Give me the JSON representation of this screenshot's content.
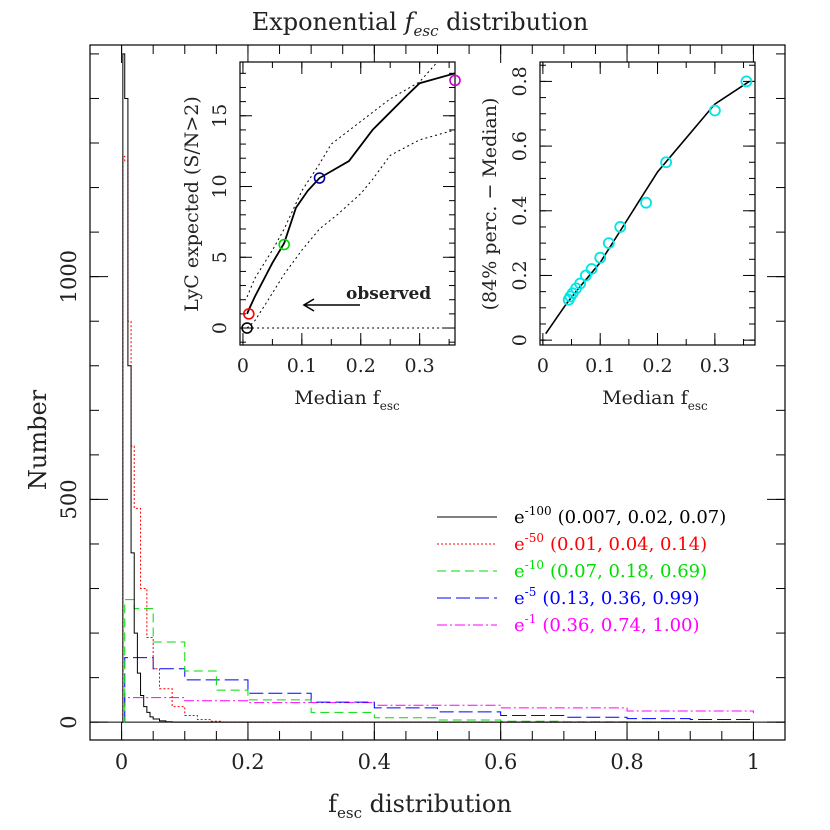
{
  "main_title": {
    "prefix": "Exponential ",
    "var": "f",
    "sub": "esc",
    "suffix": " distribution"
  },
  "main_xlabel": {
    "var": "f",
    "sub": "esc",
    "suffix": " distribution"
  },
  "main_ylabel": "Number",
  "inset1": {
    "ylabel": "LyC expected (S/N>2)",
    "xlabel_prefix": "Median f",
    "xlabel_sub": "esc",
    "annotation": "observed"
  },
  "inset2": {
    "ylabel": "(84% perc. − Median)",
    "xlabel_prefix": "Median f",
    "xlabel_sub": "esc"
  },
  "legend": [
    {
      "base": "e",
      "exp": "-100",
      "params": "(0.007, 0.02, 0.07)",
      "color": "#000000"
    },
    {
      "base": "e",
      "exp": "-50",
      "params": "(0.01, 0.04, 0.14)",
      "color": "#ff0000"
    },
    {
      "base": "e",
      "exp": "-10",
      "params": "(0.07, 0.18, 0.69)",
      "color": "#00dd00"
    },
    {
      "base": "e",
      "exp": "-5",
      "params": "(0.13, 0.36, 0.99)",
      "color": "#0000ff"
    },
    {
      "base": "e",
      "exp": "-1",
      "params": "(0.36, 0.74, 1.00)",
      "color": "#ff00ff"
    }
  ],
  "chart_data": [
    {
      "type": "line",
      "xlim": [
        -0.05,
        1.05
      ],
      "ylim": [
        -40,
        1520
      ],
      "xticks": [
        0,
        0.2,
        0.4,
        0.6,
        0.8,
        1
      ],
      "xtick_labels": [
        "0",
        "0.2",
        "0.4",
        "0.6",
        "0.8",
        "1"
      ],
      "yticks": [
        0,
        500,
        1000
      ],
      "ytick_labels": [
        "0",
        "500",
        "1000"
      ],
      "series": [
        {
          "name": "e-100",
          "color": "#000000",
          "dash": "",
          "x": [
            0,
            0.002,
            0.005,
            0.01,
            0.015,
            0.02,
            0.025,
            0.03,
            0.035,
            0.04,
            0.045,
            0.05,
            0.06,
            0.07,
            0.08,
            0.1,
            1.0
          ],
          "y": [
            0,
            1500,
            1400,
            800,
            380,
            200,
            110,
            60,
            35,
            22,
            12,
            7,
            3,
            1,
            0,
            0,
            0
          ]
        },
        {
          "name": "e-50",
          "color": "#ff0000",
          "dash": "2,2",
          "x": [
            0,
            0.002,
            0.005,
            0.01,
            0.015,
            0.02,
            0.03,
            0.04,
            0.05,
            0.06,
            0.08,
            0.1,
            0.12,
            0.14,
            0.16,
            1.0
          ],
          "y": [
            0,
            1270,
            1260,
            900,
            620,
            480,
            300,
            190,
            120,
            75,
            35,
            15,
            6,
            2,
            0,
            0
          ]
        },
        {
          "name": "e-10",
          "color": "#00dd00",
          "dash": "9,5",
          "x": [
            0,
            0.005,
            0.02,
            0.05,
            0.1,
            0.15,
            0.2,
            0.3,
            0.4,
            0.5,
            0.6,
            0.7,
            0.8,
            1.0
          ],
          "y": [
            0,
            275,
            255,
            180,
            115,
            72,
            50,
            22,
            10,
            5,
            2,
            1,
            0,
            0
          ]
        },
        {
          "name": "e-5",
          "color": "#0000ff",
          "dash": "14,5",
          "x": [
            0,
            0.005,
            0.05,
            0.1,
            0.2,
            0.3,
            0.4,
            0.5,
            0.6,
            0.7,
            0.8,
            0.9,
            1.0
          ],
          "y": [
            0,
            145,
            120,
            95,
            65,
            45,
            32,
            23,
            15,
            11,
            8,
            6,
            4
          ]
        },
        {
          "name": "e-1",
          "color": "#ff00ff",
          "dash": "10,3,2,3",
          "x": [
            0,
            0.005,
            0.1,
            0.2,
            0.4,
            0.6,
            0.8,
            1.0
          ],
          "y": [
            0,
            55,
            48,
            44,
            38,
            32,
            25,
            20
          ]
        }
      ]
    },
    {
      "type": "line",
      "xlim": [
        -0.005,
        0.36
      ],
      "ylim": [
        -1.2,
        18.8
      ],
      "xticks": [
        0,
        0.1,
        0.2,
        0.3
      ],
      "xtick_labels": [
        "0",
        "0.1",
        "0.2",
        "0.3"
      ],
      "yticks": [
        0,
        5,
        10,
        15
      ],
      "ytick_labels": [
        "0",
        "5",
        "10",
        "15"
      ],
      "median": {
        "x": [
          0.007,
          0.01,
          0.02,
          0.03,
          0.04,
          0.05,
          0.06,
          0.07,
          0.09,
          0.11,
          0.13,
          0.18,
          0.22,
          0.28,
          0.3,
          0.36
        ],
        "y": [
          1.0,
          1.3,
          2.2,
          3.0,
          3.8,
          4.6,
          5.3,
          6.0,
          8.5,
          9.7,
          10.6,
          11.8,
          14.0,
          16.5,
          17.3,
          18.0
        ]
      },
      "upper": {
        "x": [
          0.007,
          0.02,
          0.05,
          0.07,
          0.1,
          0.13,
          0.15,
          0.2,
          0.25,
          0.3,
          0.33
        ],
        "y": [
          2.2,
          3.5,
          5.5,
          7.0,
          9.7,
          11.6,
          13.0,
          14.6,
          16.2,
          17.4,
          18.8
        ]
      },
      "lower": {
        "x": [
          0.007,
          0.02,
          0.04,
          0.07,
          0.1,
          0.13,
          0.16,
          0.2,
          0.22,
          0.25,
          0.3,
          0.36
        ],
        "y": [
          0.0,
          0.5,
          1.8,
          3.8,
          5.5,
          7.0,
          8.0,
          9.5,
          10.5,
          12.2,
          13.3,
          14.0
        ]
      },
      "zero_line": {
        "x": [
          0.007,
          0.36
        ],
        "y": [
          0,
          0
        ]
      },
      "markers": [
        {
          "x": 0.007,
          "y": 0.0,
          "color": "#000000"
        },
        {
          "x": 0.01,
          "y": 1.0,
          "color": "#ff0000"
        },
        {
          "x": 0.07,
          "y": 5.9,
          "color": "#00dd00"
        },
        {
          "x": 0.13,
          "y": 10.6,
          "color": "#0000aa"
        },
        {
          "x": 0.36,
          "y": 17.5,
          "color": "#cc00cc"
        }
      ]
    },
    {
      "type": "scatter",
      "xlim": [
        -0.005,
        0.37
      ],
      "ylim": [
        -0.015,
        0.86
      ],
      "xticks": [
        0,
        0.1,
        0.2,
        0.3
      ],
      "xtick_labels": [
        "0",
        "0.1",
        "0.2",
        "0.3"
      ],
      "yticks": [
        0,
        0.2,
        0.4,
        0.6,
        0.8
      ],
      "ytick_labels": [
        "0",
        "0.2",
        "0.4",
        "0.6",
        "0.8"
      ],
      "line": {
        "x": [
          0.005,
          0.04,
          0.06,
          0.1,
          0.15,
          0.2,
          0.3,
          0.36
        ],
        "y": [
          0.02,
          0.11,
          0.155,
          0.24,
          0.38,
          0.52,
          0.73,
          0.8
        ]
      },
      "points": {
        "x": [
          0.045,
          0.048,
          0.052,
          0.058,
          0.065,
          0.075,
          0.085,
          0.1,
          0.115,
          0.135,
          0.18,
          0.215,
          0.3,
          0.355
        ],
        "y": [
          0.125,
          0.135,
          0.145,
          0.16,
          0.175,
          0.2,
          0.22,
          0.255,
          0.3,
          0.35,
          0.425,
          0.55,
          0.71,
          0.8
        ],
        "color": "#00e5e5"
      }
    }
  ]
}
